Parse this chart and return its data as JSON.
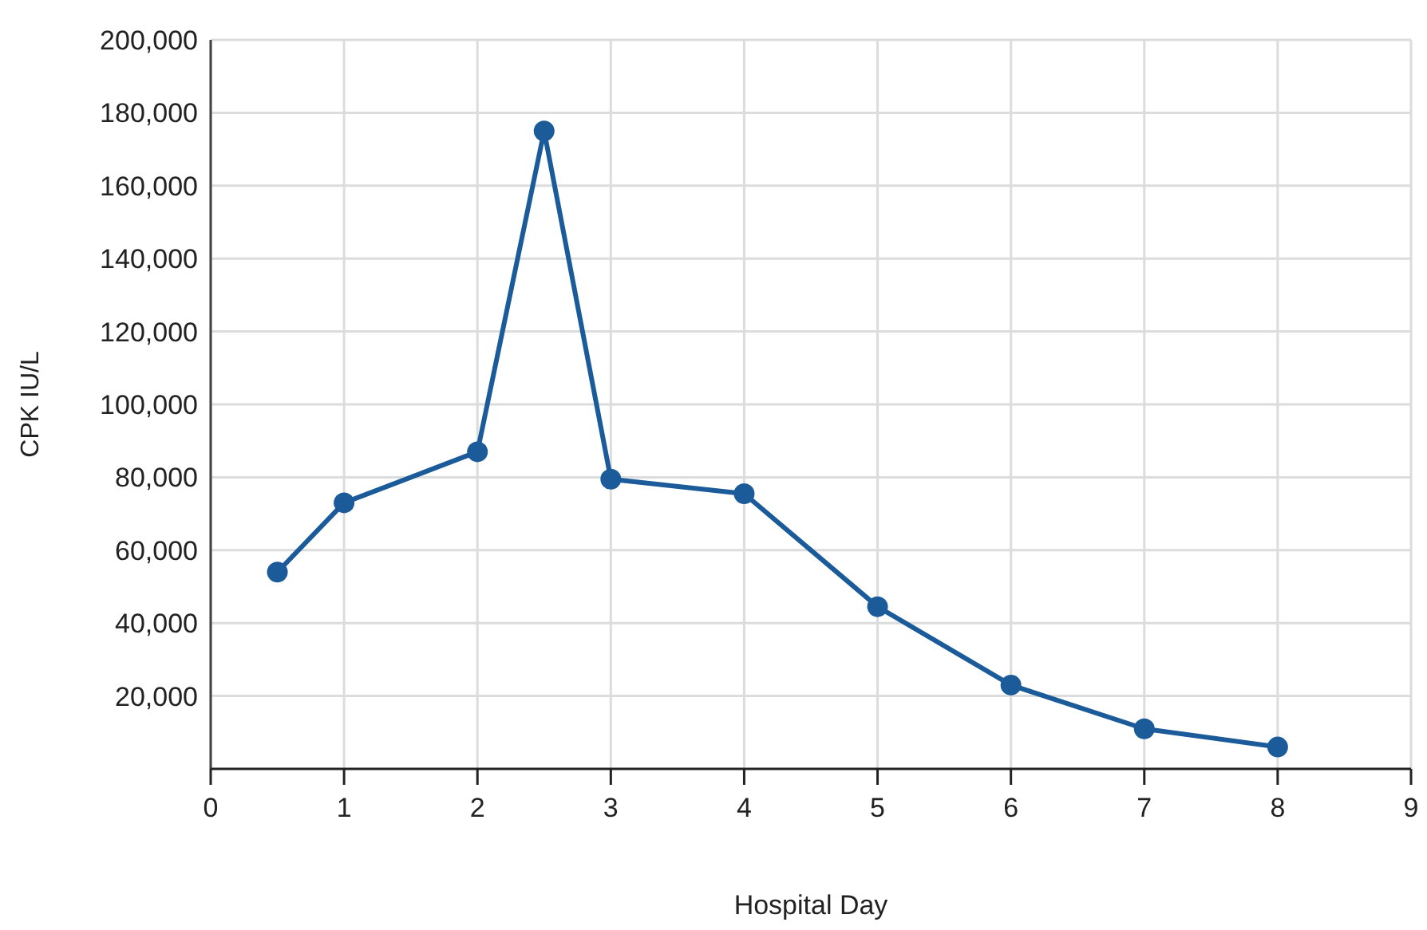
{
  "chart_data": {
    "type": "line",
    "xlabel": "Hospital Day",
    "ylabel": "CPK IU/L",
    "x": [
      0.5,
      1,
      2,
      2.5,
      3,
      4,
      5,
      6,
      7,
      8
    ],
    "series": [
      {
        "color": "#1b5b9a",
        "values": [
          54000,
          73000,
          87000,
          175000,
          79500,
          75500,
          44500,
          23000,
          11000,
          6000
        ]
      }
    ],
    "xlim": [
      0,
      9
    ],
    "xticks": [
      0,
      1,
      2,
      3,
      4,
      5,
      6,
      7,
      8,
      9
    ],
    "ylim": [
      0,
      200000
    ],
    "yticks": [
      {
        "value": 20000,
        "label": "20,000"
      },
      {
        "value": 40000,
        "label": "40,000"
      },
      {
        "value": 60000,
        "label": "60,000"
      },
      {
        "value": 80000,
        "label": "80,000"
      },
      {
        "value": 100000,
        "label": "100,000"
      },
      {
        "value": 120000,
        "label": "120,000"
      },
      {
        "value": 140000,
        "label": "140,000"
      },
      {
        "value": 160000,
        "label": "160,000"
      },
      {
        "value": 180000,
        "label": "180,000"
      },
      {
        "value": 200000,
        "label": "200,000"
      }
    ],
    "grid": true,
    "marker": "circle",
    "line_style": "solid"
  }
}
